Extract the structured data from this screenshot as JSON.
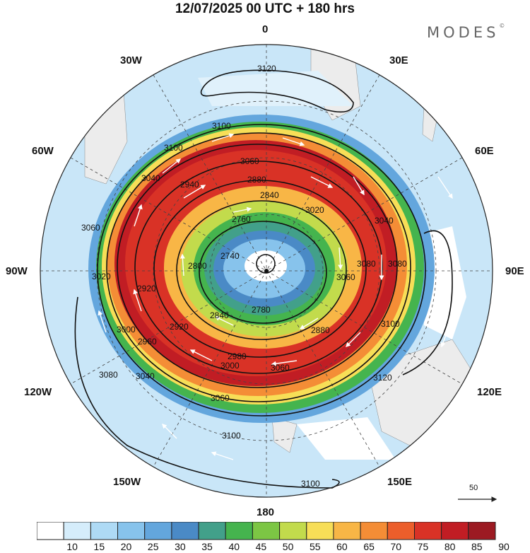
{
  "title": "12/07/2025  00 UTC  + 180 hrs",
  "logo": "MODES",
  "logo_mark": "©",
  "longitude_labels": {
    "lon_0": "0",
    "lon_30e": "30E",
    "lon_60e": "60E",
    "lon_90e": "90E",
    "lon_120e": "120E",
    "lon_150e": "150E",
    "lon_180": "180",
    "lon_150w": "150W",
    "lon_120w": "120W",
    "lon_90w": "90W",
    "lon_60w": "60W",
    "lon_30w": "30W"
  },
  "contour_labels": [
    "3120",
    "3100",
    "3100",
    "3060",
    "3040",
    "2940",
    "2880",
    "2840",
    "2760",
    "2740",
    "2800",
    "2780",
    "2840",
    "2920",
    "2960",
    "3000",
    "2920",
    "3020",
    "3060",
    "3080",
    "3040",
    "3060",
    "3000",
    "2980",
    "3060",
    "2880",
    "3080",
    "3100",
    "3120",
    "3100",
    "3100",
    "3080",
    "3040",
    "3060",
    "3020"
  ],
  "reference_vector": {
    "value": "50"
  },
  "colorbar": {
    "colors": [
      "#ffffff",
      "#d5edfb",
      "#aedaf5",
      "#87c3ec",
      "#63a6dd",
      "#4a8ac6",
      "#42a08a",
      "#45b44e",
      "#7cc644",
      "#c2db4c",
      "#f7de57",
      "#f8b646",
      "#f48d36",
      "#ec5e2b",
      "#d93226",
      "#c11d24",
      "#9c1a22"
    ],
    "labels": [
      "10",
      "15",
      "20",
      "25",
      "30",
      "35",
      "40",
      "45",
      "50",
      "55",
      "60",
      "65",
      "70",
      "75",
      "80",
      "85",
      "90"
    ]
  }
}
